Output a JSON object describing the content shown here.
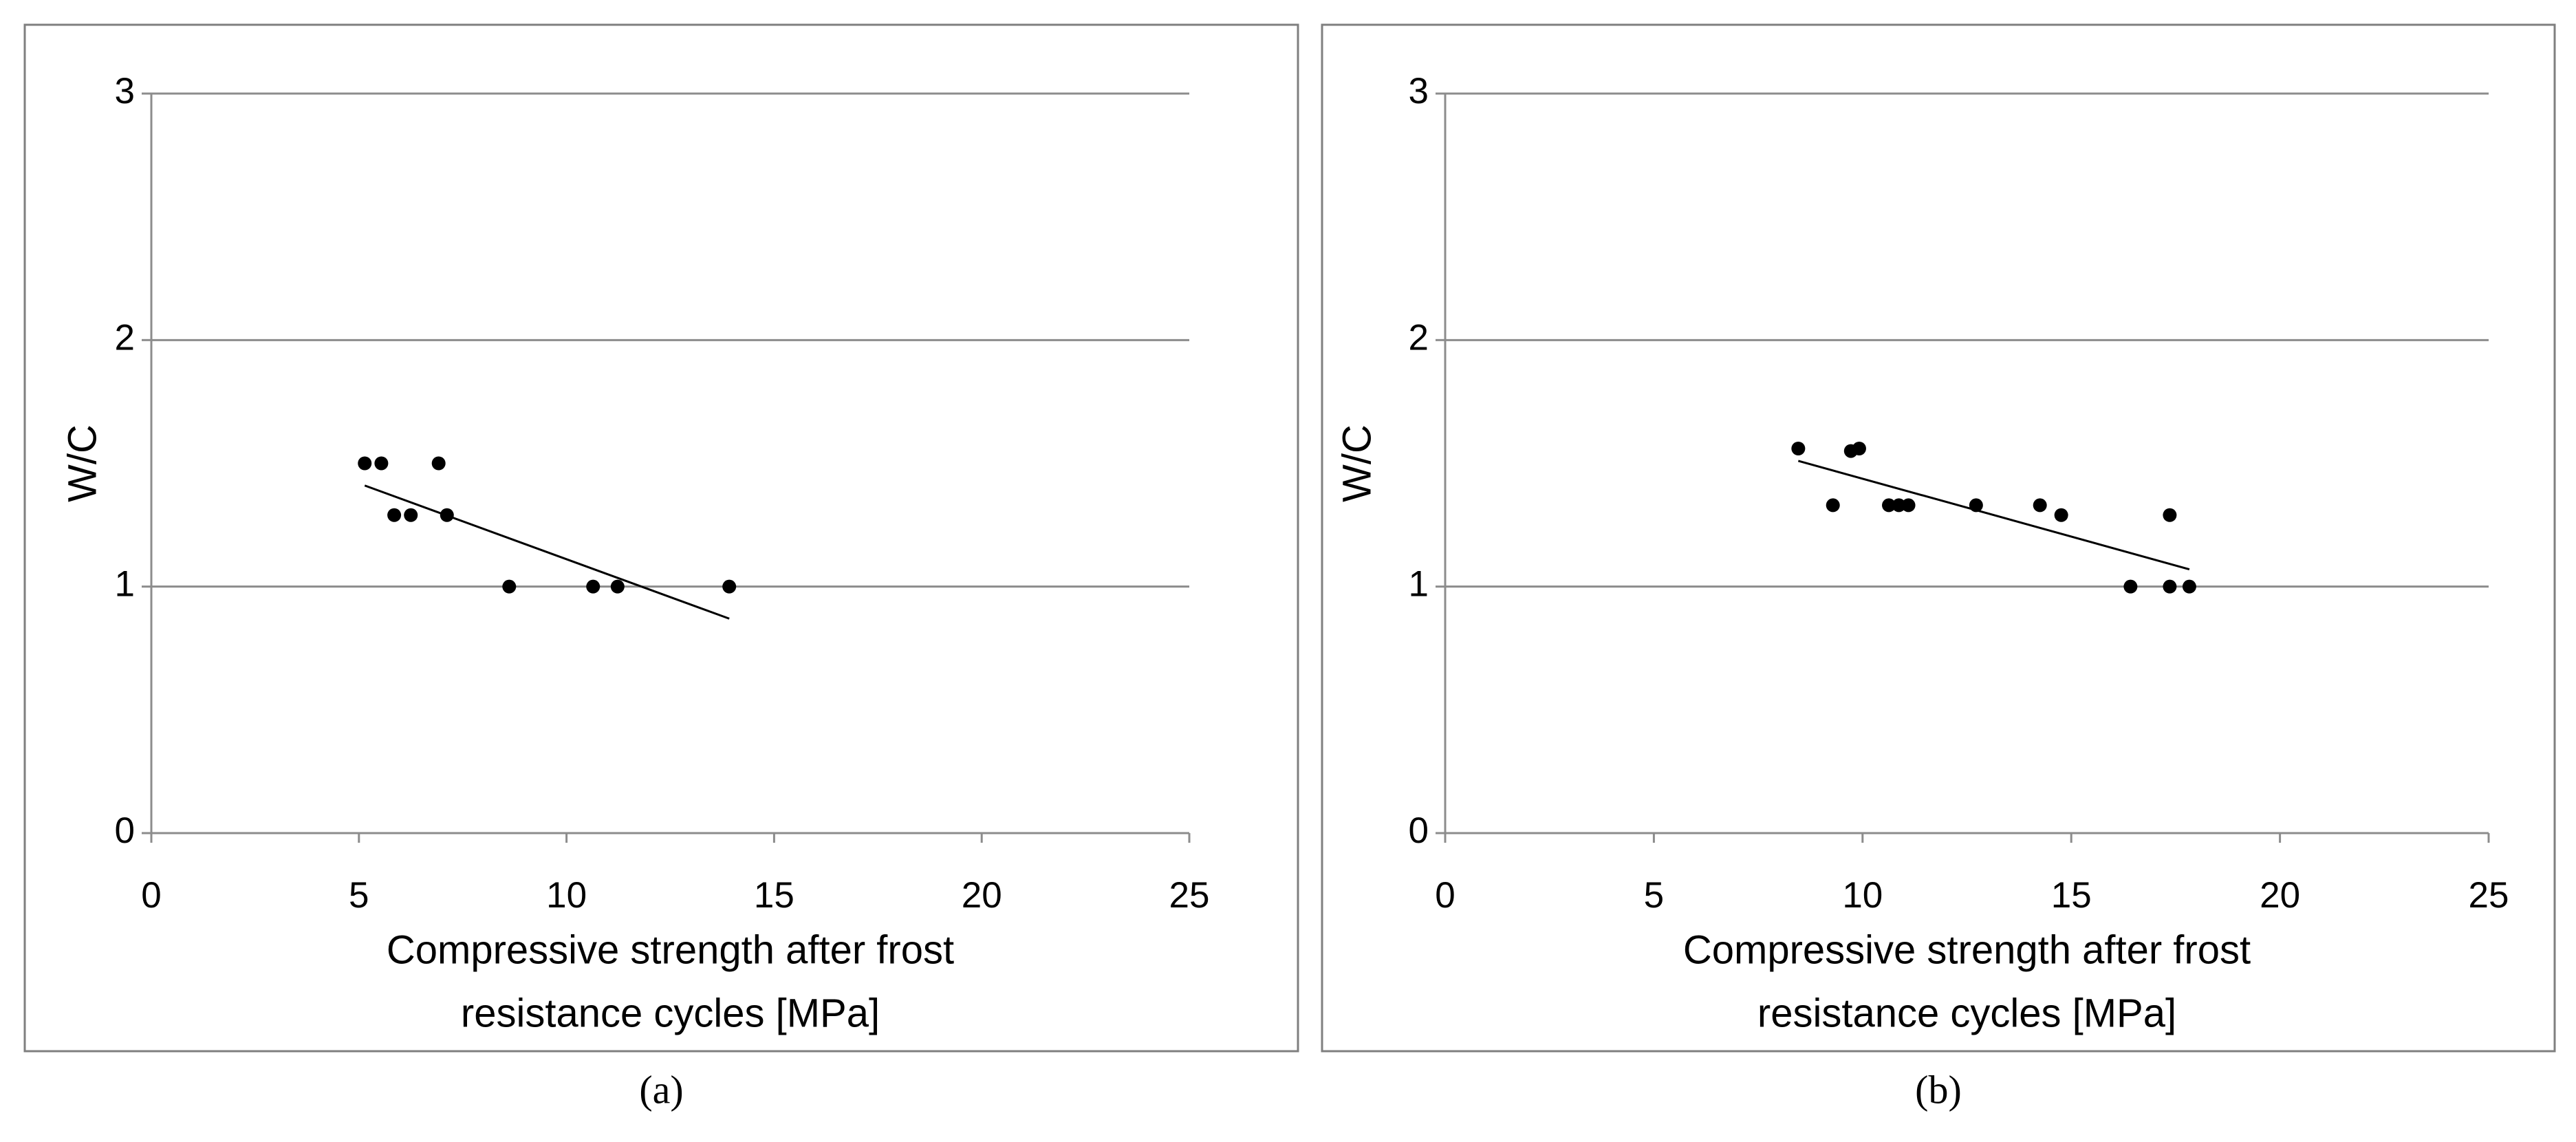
{
  "chart_data": [
    {
      "type": "scatter",
      "caption": "(a)",
      "ylabel": "W/C",
      "xlabel": [
        "Compressive strength after frost",
        "resistance cycles [MPa]"
      ],
      "x": [
        5.14,
        5.54,
        5.85,
        6.25,
        6.92,
        7.12,
        8.62,
        10.64,
        11.23,
        13.92
      ],
      "y": [
        1.5,
        1.5,
        1.29,
        1.29,
        1.5,
        1.29,
        1.0,
        1.0,
        1.0,
        1.0
      ],
      "trendline": {
        "x": [
          5.14,
          13.92
        ],
        "y": [
          1.41,
          0.87
        ]
      },
      "color": "#000000",
      "xlim": [
        0,
        25
      ],
      "ylim": [
        0,
        3
      ],
      "xticks": [
        0,
        5,
        10,
        15,
        20,
        25
      ],
      "yticks": [
        0,
        1,
        2,
        3
      ],
      "grid": true
    },
    {
      "type": "scatter",
      "caption": "(b)",
      "ylabel": "W/C",
      "xlabel": [
        "Compressive strength after frost",
        "resistance cycles [MPa]"
      ],
      "x": [
        8.46,
        9.29,
        9.72,
        9.92,
        10.63,
        10.87,
        11.1,
        12.72,
        14.25,
        14.76,
        16.42,
        17.36,
        17.36,
        17.83
      ],
      "y": [
        1.56,
        1.33,
        1.55,
        1.56,
        1.33,
        1.33,
        1.33,
        1.33,
        1.33,
        1.29,
        1.0,
        1.29,
        1.0,
        1.0
      ],
      "trendline": {
        "x": [
          8.46,
          17.83
        ],
        "y": [
          1.51,
          1.07
        ]
      },
      "color": "#000000",
      "xlim": [
        0,
        25
      ],
      "ylim": [
        0,
        3
      ],
      "xticks": [
        0,
        5,
        10,
        15,
        20,
        25
      ],
      "yticks": [
        0,
        1,
        2,
        3
      ],
      "grid": true
    }
  ]
}
